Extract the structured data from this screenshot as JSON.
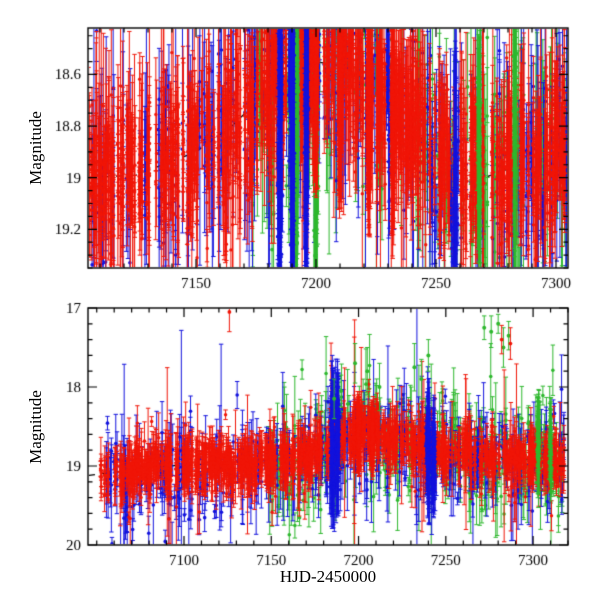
{
  "page": {
    "background": "#ffffff"
  },
  "axis_titles": {
    "y_top": "Magnitude",
    "y_bottom": "Magnitude",
    "x_bottom": "HJD-2450000"
  },
  "colors": {
    "red": "#f01507",
    "green": "#2eb82e",
    "blue": "#1212dd",
    "trend": "#000000",
    "frame": "#000000"
  },
  "render": {
    "seed": 7
  },
  "chart_data": [
    {
      "id": "top-panel",
      "type": "scatter",
      "title": "",
      "xlabel": "",
      "ylabel": "Magnitude",
      "legend": "none",
      "grid": false,
      "y_axis_inverted_magnitude": true,
      "xlim": [
        7105,
        7305
      ],
      "ylim": [
        18.42,
        19.35
      ],
      "xticks": {
        "major": [
          7150,
          7200,
          7250,
          7300
        ],
        "labels": [
          "7150",
          "7200",
          "7250",
          "7300"
        ],
        "minor_step": 10
      },
      "yticks": {
        "major": [
          18.6,
          18.8,
          19.0,
          19.2
        ],
        "labels": [
          "18.6",
          "18.8",
          "19",
          "19.2"
        ],
        "minor_step": 0.05
      },
      "gap_prob": 0.22,
      "trend": [
        [
          7105,
          19.0
        ],
        [
          7125,
          18.99
        ],
        [
          7150,
          18.9
        ],
        [
          7165,
          18.8
        ],
        [
          7178,
          18.68
        ],
        [
          7188,
          18.62
        ],
        [
          7200,
          18.55
        ],
        [
          7212,
          18.57
        ],
        [
          7222,
          18.63
        ],
        [
          7232,
          18.73
        ],
        [
          7245,
          18.86
        ],
        [
          7258,
          18.95
        ],
        [
          7270,
          19.0
        ],
        [
          7285,
          18.95
        ],
        [
          7305,
          18.9
        ]
      ],
      "series": [
        {
          "name": "green-band",
          "color": "green",
          "n": 430,
          "x_range": [
            7172,
            7305
          ],
          "sigma": 0.2,
          "offset": 0,
          "err": [
            0.08,
            0.45
          ],
          "wild_p": 0.05,
          "wild_amp": 0.3,
          "r": 1.8,
          "columns": [
            {
              "x": 7192,
              "n": 60,
              "mag_range": [
                18.5,
                19.3
              ]
            },
            {
              "x": 7200,
              "n": 45,
              "mag_range": [
                18.55,
                19.3
              ]
            },
            {
              "x": 7268,
              "n": 40,
              "mag_range": [
                18.6,
                19.3
              ]
            },
            {
              "x": 7283,
              "n": 45,
              "mag_range": [
                18.5,
                19.25
              ]
            }
          ],
          "outliers": []
        },
        {
          "name": "blue-band",
          "color": "blue",
          "n": 620,
          "x_range": [
            7106,
            7305
          ],
          "sigma": 0.17,
          "offset": 0,
          "err": [
            0.08,
            0.5
          ],
          "wild_p": 0.05,
          "wild_amp": 0.3,
          "r": 1.8,
          "columns": [
            {
              "x": 7185,
              "n": 130,
              "mag_range": [
                18.42,
                19.34
              ]
            },
            {
              "x": 7190,
              "n": 110,
              "mag_range": [
                18.42,
                19.34
              ]
            },
            {
              "x": 7196,
              "n": 70,
              "mag_range": [
                18.45,
                19.2
              ]
            },
            {
              "x": 7258,
              "n": 55,
              "mag_range": [
                18.85,
                19.34
              ]
            }
          ],
          "outliers": []
        },
        {
          "name": "red-band",
          "color": "red",
          "n": 2500,
          "x_range": [
            7105,
            7305
          ],
          "sigma": 0.12,
          "offset": 0,
          "err": [
            0.05,
            0.33
          ],
          "wild_p": 0.04,
          "wild_amp": 0.25,
          "r": 1.7,
          "columns": [
            {
              "x": 7200,
              "n": 240,
              "mag_range": [
                18.45,
                18.8
              ]
            },
            {
              "x": 7210,
              "n": 190,
              "mag_range": [
                18.45,
                18.85
              ]
            },
            {
              "x": 7222,
              "n": 170,
              "mag_range": [
                18.5,
                18.95
              ]
            },
            {
              "x": 7232,
              "n": 140,
              "mag_range": [
                18.6,
                19.0
              ]
            }
          ],
          "outliers": []
        }
      ]
    },
    {
      "id": "bottom-panel",
      "type": "scatter",
      "title": "",
      "xlabel": "HJD-2450000",
      "ylabel": "Magnitude",
      "legend": "none",
      "grid": false,
      "y_axis_inverted_magnitude": true,
      "xlim": [
        7045,
        7320
      ],
      "ylim": [
        17.0,
        20.0
      ],
      "xticks": {
        "major": [
          7100,
          7150,
          7200,
          7250,
          7300
        ],
        "labels": [
          "7100",
          "7150",
          "7200",
          "7250",
          "7300"
        ],
        "minor_step": 10
      },
      "yticks": {
        "major": [
          17,
          18,
          19,
          20
        ],
        "labels": [
          "17",
          "18",
          "19",
          "20"
        ],
        "minor_step": 0.2
      },
      "gap_prob": 0.18,
      "trend": [
        [
          7045,
          19.12
        ],
        [
          7070,
          19.05
        ],
        [
          7090,
          19.0
        ],
        [
          7110,
          18.98
        ],
        [
          7135,
          18.95
        ],
        [
          7160,
          18.93
        ],
        [
          7175,
          18.85
        ],
        [
          7188,
          18.72
        ],
        [
          7200,
          18.56
        ],
        [
          7210,
          18.6
        ],
        [
          7222,
          18.66
        ],
        [
          7235,
          18.75
        ],
        [
          7250,
          18.8
        ],
        [
          7265,
          18.85
        ],
        [
          7285,
          18.9
        ],
        [
          7320,
          18.95
        ]
      ],
      "series": [
        {
          "name": "green-band",
          "color": "green",
          "n": 480,
          "x_range": [
            7148,
            7318
          ],
          "sigma": 0.28,
          "offset": 0,
          "err": [
            0.1,
            0.5
          ],
          "wild_p": 0.08,
          "wild_amp": 0.6,
          "r": 1.8,
          "columns": [
            {
              "x": 7303,
              "n": 40,
              "mag_range": [
                18.3,
                19.1
              ]
            },
            {
              "x": 7310,
              "n": 35,
              "mag_range": [
                18.4,
                19.2
              ]
            }
          ],
          "outliers": [
            [
              7272,
              17.25,
              0.15
            ],
            [
              7276,
              17.3,
              0.2
            ],
            [
              7280,
              17.2,
              0.12
            ],
            [
              7283,
              17.5,
              0.25
            ],
            [
              7286,
              17.35,
              0.18
            ],
            [
              7232,
              17.75,
              0.3
            ],
            [
              7236,
              17.9,
              0.25
            ],
            [
              7205,
              17.8,
              0.3
            ],
            [
              7198,
              17.7,
              0.25
            ],
            [
              7212,
              18.0,
              0.3
            ],
            [
              7240,
              17.6,
              0.2
            ],
            [
              7186,
              18.15,
              0.25
            ],
            [
              7190,
              18.05,
              0.2
            ]
          ]
        },
        {
          "name": "blue-band",
          "color": "blue",
          "n": 600,
          "x_range": [
            7055,
            7318
          ],
          "sigma": 0.24,
          "offset": 0.08,
          "err": [
            0.08,
            0.6
          ],
          "wild_p": 0.06,
          "wild_amp": 0.5,
          "r": 1.8,
          "columns": [
            {
              "x": 7185,
              "n": 110,
              "mag_range": [
                18.05,
                19.3
              ]
            },
            {
              "x": 7188,
              "n": 80,
              "mag_range": [
                18.1,
                19.25
              ]
            },
            {
              "x": 7240,
              "n": 90,
              "mag_range": [
                18.3,
                19.35
              ]
            },
            {
              "x": 7243,
              "n": 60,
              "mag_range": [
                18.4,
                19.3
              ]
            }
          ],
          "outliers": []
        },
        {
          "name": "red-band",
          "color": "red",
          "n": 2300,
          "x_range": [
            7052,
            7318
          ],
          "sigma": 0.09,
          "offset": 0,
          "err": [
            0.06,
            0.38
          ],
          "wild_p": 0.03,
          "wild_amp": 0.45,
          "r": 1.7,
          "columns": [
            {
              "x": 7200,
              "n": 170,
              "mag_range": [
                18.4,
                18.8
              ]
            },
            {
              "x": 7208,
              "n": 110,
              "mag_range": [
                18.45,
                18.85
              ]
            }
          ],
          "outliers": [
            [
              7126,
              17.05,
              0.25
            ],
            [
              7282,
              17.4,
              0.18
            ],
            [
              7287,
              17.45,
              0.2
            ]
          ]
        }
      ]
    }
  ]
}
